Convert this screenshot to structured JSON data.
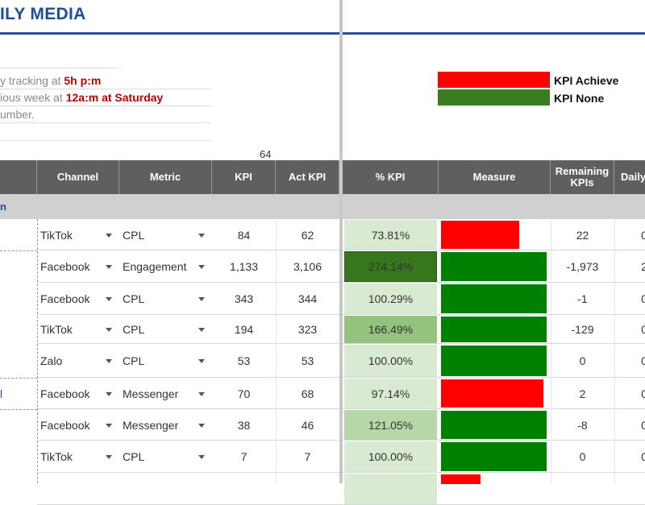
{
  "title": "ILY MEDIA",
  "notes": [
    {
      "prefix": "y tracking at ",
      "highlight": "5h p:m"
    },
    {
      "prefix": "ious week at ",
      "highlight": "12a:m at Saturday"
    },
    {
      "prefix": "umber.",
      "highlight": ""
    }
  ],
  "legend": [
    {
      "label": "KPI Achieve",
      "color": "#ff0000"
    },
    {
      "label": "KPI None",
      "color": "#3a7d22"
    }
  ],
  "row_count": "64",
  "headers": [
    "Channel",
    "Metric",
    "KPI",
    "Act KPI",
    "% KPI",
    "Measure",
    "Remaining KPIs",
    "Daily"
  ],
  "group_label": "n",
  "colors": {
    "achieve": "#ff0000",
    "none": "#008000",
    "header_bg": "#5f5f5f",
    "title": "#1f4e99"
  },
  "rows": [
    {
      "channel": "TikTok",
      "metric": "CPL",
      "kpi": "84",
      "act": "62",
      "pct": "73.81%",
      "pct_value": 73.81,
      "pct_bg": "#d9ead3",
      "remaining": "22",
      "daily": "0",
      "bar_color": "#ff0000",
      "side_label": ""
    },
    {
      "channel": "Facebook",
      "metric": "Engagement",
      "kpi": "1,133",
      "act": "3,106",
      "pct": "274.14%",
      "pct_value": 274.14,
      "pct_bg": "#38761d",
      "remaining": "-1,973",
      "daily": "2",
      "bar_color": "#008000",
      "side_label": ""
    },
    {
      "channel": "Facebook",
      "metric": "CPL",
      "kpi": "343",
      "act": "344",
      "pct": "100.29%",
      "pct_value": 100.29,
      "pct_bg": "#d9ead3",
      "remaining": "-1",
      "daily": "0",
      "bar_color": "#008000",
      "side_label": ""
    },
    {
      "channel": "TikTok",
      "metric": "CPL",
      "kpi": "194",
      "act": "323",
      "pct": "166.49%",
      "pct_value": 166.49,
      "pct_bg": "#93c47d",
      "remaining": "-129",
      "daily": "0",
      "bar_color": "#008000",
      "side_label": ""
    },
    {
      "channel": "Zalo",
      "metric": "CPL",
      "kpi": "53",
      "act": "53",
      "pct": "100.00%",
      "pct_value": 100.0,
      "pct_bg": "#d9ead3",
      "remaining": "0",
      "daily": "0",
      "bar_color": "#008000",
      "side_label": ""
    },
    {
      "channel": "Facebook",
      "metric": "Messenger",
      "kpi": "70",
      "act": "68",
      "pct": "97.14%",
      "pct_value": 97.14,
      "pct_bg": "#d9ead3",
      "remaining": "2",
      "daily": "0",
      "bar_color": "#ff0000",
      "side_label": "l"
    },
    {
      "channel": "Facebook",
      "metric": "Messenger",
      "kpi": "38",
      "act": "46",
      "pct": "121.05%",
      "pct_value": 121.05,
      "pct_bg": "#b6d7a8",
      "remaining": "-8",
      "daily": "0",
      "bar_color": "#008000",
      "side_label": ""
    },
    {
      "channel": "TikTok",
      "metric": "CPL",
      "kpi": "7",
      "act": "7",
      "pct": "100.00%",
      "pct_value": 100.0,
      "pct_bg": "#d9ead3",
      "remaining": "0",
      "daily": "0",
      "bar_color": "#008000",
      "side_label": ""
    },
    {
      "channel": "",
      "metric": "",
      "kpi": "",
      "act": "",
      "pct": "",
      "pct_value": 30,
      "pct_bg": "#d9ead3",
      "remaining": "",
      "daily": "",
      "bar_color": "#ff0000",
      "side_label": ""
    }
  ]
}
